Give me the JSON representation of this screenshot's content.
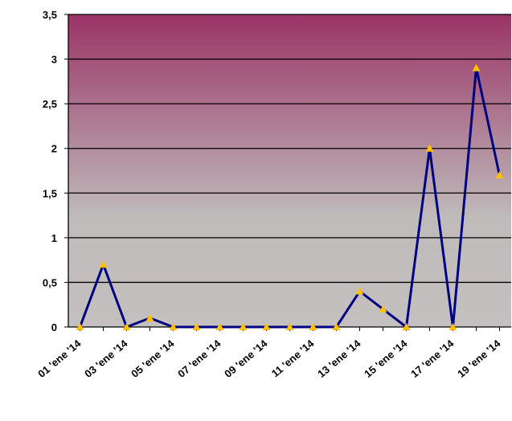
{
  "chart_data": {
    "type": "line",
    "categories": [
      "01 'ene '14",
      null,
      "03 'ene '14",
      null,
      "05 'ene '14",
      null,
      "07 'ene '14",
      null,
      "09 'ene '14",
      null,
      "11 'ene '14",
      null,
      "13 'ene '14",
      null,
      "15 'ene '14",
      null,
      "17 'ene '14",
      null,
      "19 'ene '14"
    ],
    "series": [
      {
        "color": "#000080",
        "marker_color": "#ffc000",
        "values": [
          0,
          0.7,
          0,
          0.1,
          0,
          0,
          0,
          0,
          0,
          0,
          0,
          0,
          0.4,
          0.2,
          0,
          2,
          0,
          2.9,
          1.7
        ]
      }
    ],
    "ylim": [
      0,
      3.5
    ],
    "yticks": [
      0,
      {
        "value": 0.5,
        "label": "0,5"
      },
      1,
      {
        "value": 1.5,
        "label": "1,5"
      },
      2,
      {
        "value": 2.5,
        "label": "2,5"
      },
      3,
      {
        "value": 3.5,
        "label": "3,5"
      }
    ],
    "grid": true
  }
}
